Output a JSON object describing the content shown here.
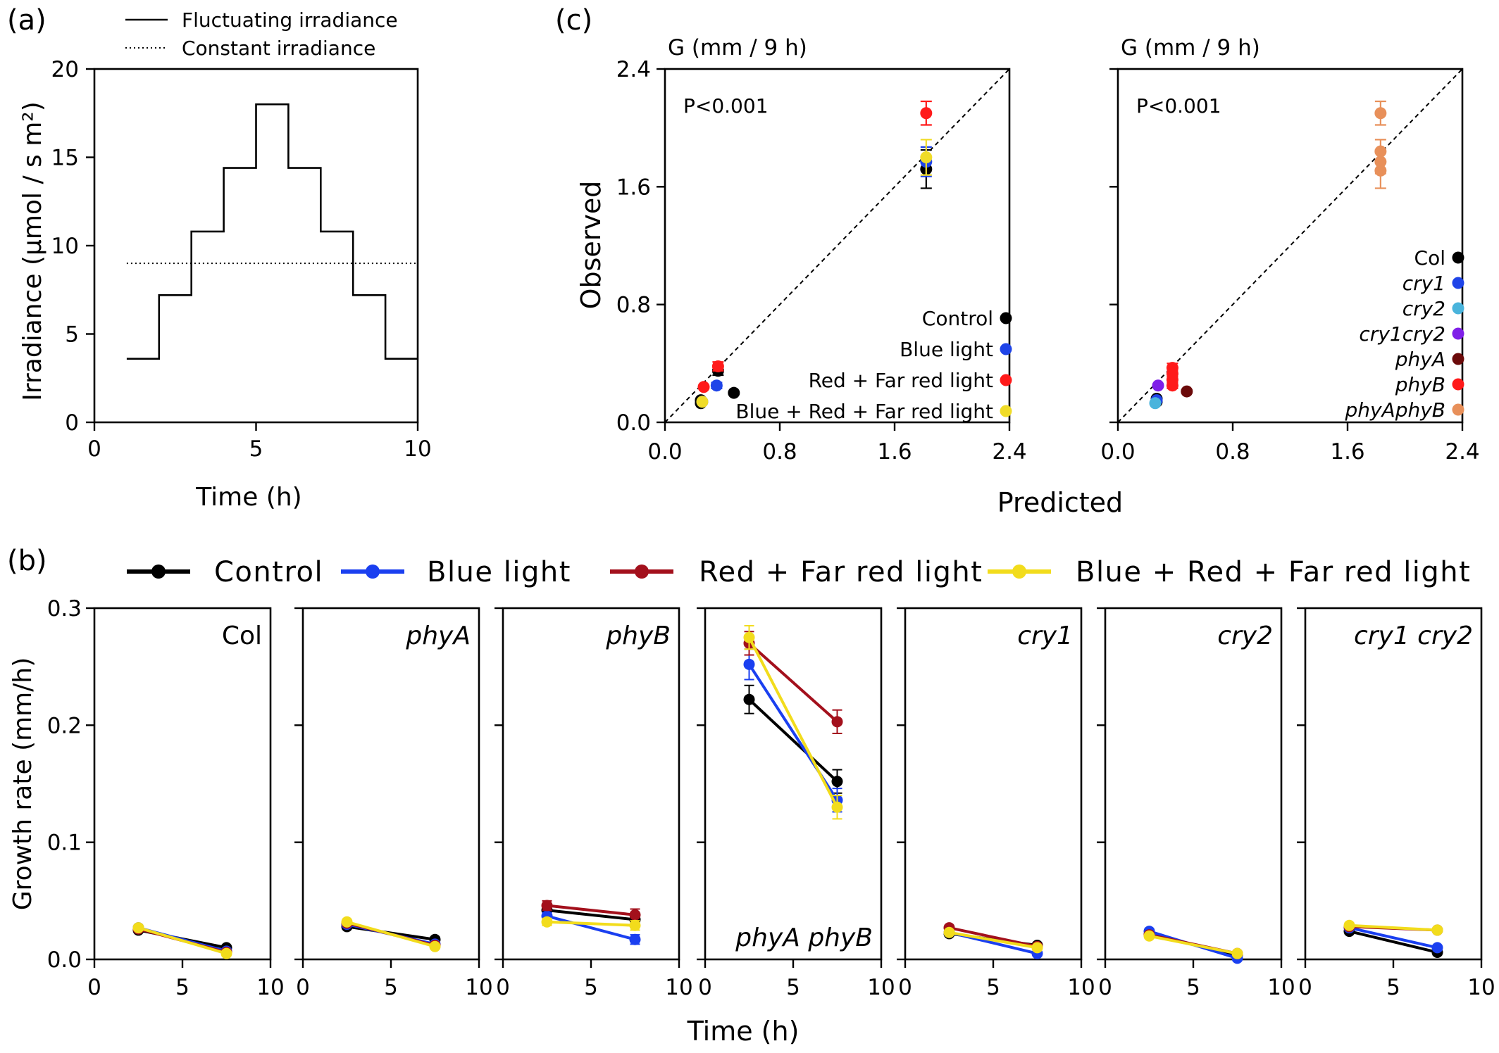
{
  "panel_labels": {
    "a": "(a)",
    "b": "(b)",
    "c": "(c)"
  },
  "chart_data": [
    {
      "id": "a",
      "type": "line",
      "xlabel": "Time (h)",
      "ylabel": "Irradiance (µmol / s m²)",
      "xlim": [
        0,
        10
      ],
      "ylim": [
        0,
        20
      ],
      "xticks": [
        0,
        5,
        10
      ],
      "yticks": [
        0,
        5,
        10,
        15,
        20
      ],
      "legend": [
        "Fluctuating irradiance",
        "Constant irradiance"
      ],
      "legend_position": "top",
      "series": [
        {
          "name": "Fluctuating irradiance",
          "style": "solid",
          "x": [
            1,
            2,
            2,
            3,
            3,
            4,
            4,
            5,
            5,
            6,
            6,
            7,
            7,
            8,
            8,
            9,
            9,
            10
          ],
          "y": [
            3.6,
            3.6,
            7.2,
            7.2,
            10.8,
            10.8,
            14.4,
            14.4,
            18,
            18,
            14.4,
            14.4,
            10.8,
            10.8,
            7.2,
            7.2,
            3.6,
            3.6
          ]
        },
        {
          "name": "Constant irradiance",
          "style": "dotted",
          "x": [
            1,
            10
          ],
          "y": [
            9,
            9
          ]
        }
      ]
    },
    {
      "id": "b",
      "type": "line",
      "xlabel": "Time (h)",
      "ylabel": "Growth rate (mm/h)",
      "xlim": [
        0,
        10
      ],
      "ylim": [
        0,
        0.3
      ],
      "xticks": [
        0,
        5,
        10
      ],
      "yticks": [
        "0.0",
        "0.1",
        "0.2",
        "0.3"
      ],
      "x": [
        2.5,
        7.5
      ],
      "legend_position": "top",
      "series_colors": {
        "Control": "#000000",
        "Blue light": "#1a3ff0",
        "Red + Far red light": "#a3101c",
        "Blue + Red + Far red light": "#f2dc1c"
      },
      "legend": [
        "Control",
        "Blue light",
        "Red + Far red light",
        "Blue + Red + Far red light"
      ],
      "panels": [
        {
          "title": "Col",
          "series": [
            {
              "name": "Control",
              "values": [
                0.025,
                0.01
              ],
              "err": [
                0.002,
                0.002
              ]
            },
            {
              "name": "Blue light",
              "values": [
                0.027,
                0.007
              ],
              "err": [
                0.002,
                0.002
              ]
            },
            {
              "name": "Red + Far red light",
              "values": [
                0.026,
                0.006
              ],
              "err": [
                0.002,
                0.002
              ]
            },
            {
              "name": "Blue + Red + Far red light",
              "values": [
                0.027,
                0.005
              ],
              "err": [
                0.002,
                0.002
              ]
            }
          ]
        },
        {
          "title": "phyA",
          "series": [
            {
              "name": "Control",
              "values": [
                0.028,
                0.017
              ],
              "err": [
                0.002,
                0.002
              ]
            },
            {
              "name": "Blue light",
              "values": [
                0.03,
                0.013
              ],
              "err": [
                0.002,
                0.002
              ]
            },
            {
              "name": "Red + Far red light",
              "values": [
                0.031,
                0.012
              ],
              "err": [
                0.002,
                0.002
              ]
            },
            {
              "name": "Blue + Red + Far red light",
              "values": [
                0.032,
                0.011
              ],
              "err": [
                0.002,
                0.002
              ]
            }
          ]
        },
        {
          "title": "phyB",
          "series": [
            {
              "name": "Control",
              "values": [
                0.042,
                0.034
              ],
              "err": [
                0.003,
                0.003
              ]
            },
            {
              "name": "Blue light",
              "values": [
                0.037,
                0.017
              ],
              "err": [
                0.003,
                0.004
              ]
            },
            {
              "name": "Red + Far red light",
              "values": [
                0.046,
                0.038
              ],
              "err": [
                0.004,
                0.005
              ]
            },
            {
              "name": "Blue + Red + Far red light",
              "values": [
                0.032,
                0.029
              ],
              "err": [
                0.003,
                0.004
              ]
            }
          ]
        },
        {
          "title": "phyA phyB",
          "series": [
            {
              "name": "Control",
              "values": [
                0.222,
                0.152
              ],
              "err": [
                0.012,
                0.01
              ]
            },
            {
              "name": "Blue light",
              "values": [
                0.252,
                0.136
              ],
              "err": [
                0.013,
                0.01
              ]
            },
            {
              "name": "Red + Far red light",
              "values": [
                0.27,
                0.203
              ],
              "err": [
                0.01,
                0.01
              ]
            },
            {
              "name": "Blue + Red + Far red light",
              "values": [
                0.275,
                0.13
              ],
              "err": [
                0.01,
                0.01
              ]
            }
          ]
        },
        {
          "title": "cry1",
          "series": [
            {
              "name": "Control",
              "values": [
                0.022,
                0.012
              ],
              "err": [
                0.002,
                0.002
              ]
            },
            {
              "name": "Blue light",
              "values": [
                0.023,
                0.005
              ],
              "err": [
                0.002,
                0.002
              ]
            },
            {
              "name": "Red + Far red light",
              "values": [
                0.027,
                0.011
              ],
              "err": [
                0.002,
                0.002
              ]
            },
            {
              "name": "Blue + Red + Far red light",
              "values": [
                0.023,
                0.01
              ],
              "err": [
                0.002,
                0.002
              ]
            }
          ]
        },
        {
          "title": "cry2",
          "series": [
            {
              "name": "Control",
              "values": [
                0.021,
                0.004
              ],
              "err": [
                0.002,
                0.002
              ]
            },
            {
              "name": "Blue light",
              "values": [
                0.024,
                0.001
              ],
              "err": [
                0.002,
                0.002
              ]
            },
            {
              "name": "Red + Far red light",
              "values": [
                0.021,
                0.005
              ],
              "err": [
                0.002,
                0.002
              ]
            },
            {
              "name": "Blue + Red + Far red light",
              "values": [
                0.02,
                0.005
              ],
              "err": [
                0.002,
                0.002
              ]
            }
          ]
        },
        {
          "title": "cry1 cry2",
          "series": [
            {
              "name": "Control",
              "values": [
                0.024,
                0.006
              ],
              "err": [
                0.002,
                0.002
              ]
            },
            {
              "name": "Blue light",
              "values": [
                0.027,
                0.01
              ],
              "err": [
                0.002,
                0.002
              ]
            },
            {
              "name": "Red + Far red light",
              "values": [
                0.028,
                0.025
              ],
              "err": [
                0.002,
                0.002
              ]
            },
            {
              "name": "Blue + Red + Far red light",
              "values": [
                0.029,
                0.025
              ],
              "err": [
                0.002,
                0.002
              ]
            }
          ]
        }
      ]
    },
    {
      "id": "c-left",
      "type": "scatter",
      "title": "G (mm / 9 h)",
      "xlabel": "Predicted",
      "ylabel": "Observed",
      "xlim": [
        0,
        2.4
      ],
      "ylim": [
        0,
        2.4
      ],
      "xticks": [
        "0.0",
        "0.8",
        "1.6",
        "2.4"
      ],
      "yticks": [
        "0.0",
        "0.8",
        "1.6",
        "2.4"
      ],
      "annotation": "P<0.001",
      "diagonal": true,
      "legend_position": "bottom-right",
      "series": [
        {
          "name": "Control",
          "color": "#000000",
          "points": [
            [
              0.25,
              0.13
            ],
            [
              0.25,
              0.15
            ],
            [
              0.48,
              0.2
            ],
            [
              0.37,
              0.35
            ],
            [
              1.82,
              1.72
            ]
          ],
          "err": [
            0.01,
            0.01,
            0.01,
            0.03,
            0.13
          ]
        },
        {
          "name": "Blue light",
          "color": "#1f44e8",
          "points": [
            [
              0.26,
              0.14
            ],
            [
              0.36,
              0.25
            ],
            [
              1.82,
              1.77
            ]
          ],
          "err": [
            0.01,
            0.02,
            0.1
          ]
        },
        {
          "name": "Red + Far red light",
          "color": "#ff1a1a",
          "points": [
            [
              0.27,
              0.24
            ],
            [
              0.37,
              0.38
            ],
            [
              1.82,
              2.1
            ]
          ],
          "err": [
            0.01,
            0.03,
            0.08
          ]
        },
        {
          "name": "Blue + Red + Far red light",
          "color": "#f0dc28",
          "points": [
            [
              0.26,
              0.14
            ],
            [
              1.82,
              1.8
            ]
          ],
          "err": [
            0.01,
            0.12
          ]
        }
      ]
    },
    {
      "id": "c-right",
      "type": "scatter",
      "title": "G (mm / 9 h)",
      "xlabel": "Predicted",
      "xlim": [
        0,
        2.4
      ],
      "ylim": [
        0,
        2.4
      ],
      "xticks": [
        "0.0",
        "0.8",
        "1.6",
        "2.4"
      ],
      "annotation": "P<0.001",
      "diagonal": true,
      "legend_position": "bottom-right",
      "series": [
        {
          "name": "Col",
          "color": "#000000",
          "points": [
            [
              0.27,
              0.16
            ],
            [
              0.27,
              0.14
            ]
          ],
          "err": [
            0.01,
            0.01
          ]
        },
        {
          "name": "cry1",
          "color": "#1f44e8",
          "points": [
            [
              0.27,
              0.15
            ]
          ],
          "err": [
            0.01
          ]
        },
        {
          "name": "cry2",
          "color": "#4ab4dc",
          "points": [
            [
              0.26,
              0.13
            ]
          ],
          "err": [
            0.01
          ]
        },
        {
          "name": "cry1cry2",
          "color": "#7f1fe8",
          "points": [
            [
              0.28,
              0.25
            ]
          ],
          "err": [
            0.01
          ]
        },
        {
          "name": "phyA",
          "color": "#6b0a0a",
          "points": [
            [
              0.48,
              0.21
            ]
          ],
          "err": [
            0.01
          ]
        },
        {
          "name": "phyB",
          "color": "#ff1a1a",
          "points": [
            [
              0.38,
              0.25
            ],
            [
              0.38,
              0.29
            ],
            [
              0.38,
              0.33
            ],
            [
              0.38,
              0.37
            ]
          ],
          "err": [
            0.02,
            0.02,
            0.02,
            0.03
          ]
        },
        {
          "name": "phyAphyB",
          "color": "#e8905a",
          "points": [
            [
              1.83,
              2.1
            ],
            [
              1.83,
              1.84
            ],
            [
              1.83,
              1.77
            ],
            [
              1.83,
              1.71
            ]
          ],
          "err": [
            0.08,
            0.08,
            0.08,
            0.12
          ]
        }
      ]
    }
  ]
}
